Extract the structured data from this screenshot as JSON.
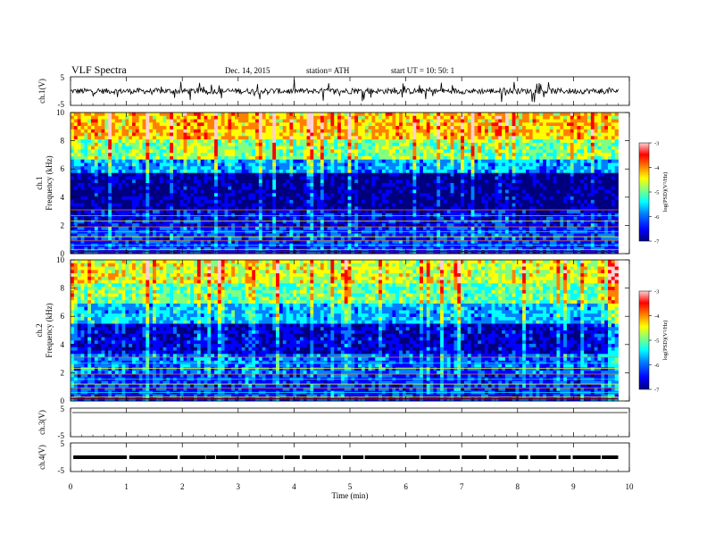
{
  "header": {
    "title": "VLF Spectra",
    "date": "Dec. 14, 2015",
    "station": "station= ATH",
    "start": "start  UT =   10: 50: 1"
  },
  "colors": {
    "waveform": "#000000",
    "frame": "#000000",
    "background": "#ffffff",
    "colormap": [
      "#00007f",
      "#0000ff",
      "#0080ff",
      "#00ffff",
      "#80ff80",
      "#ffff00",
      "#ff8000",
      "#ff0000",
      "#ffd0d0"
    ]
  },
  "chart_data": [
    {
      "id": "ch1-waveform",
      "type": "line",
      "ylabel": "ch.1(V)",
      "ylim": [
        -5,
        5
      ],
      "yticks": [
        "5",
        "-5"
      ],
      "xlim": [
        0,
        10
      ],
      "series": [
        {
          "description_level_V": 0,
          "noise_amplitude_V": 1.0,
          "spike_amplitude_V": 3.5
        }
      ]
    },
    {
      "id": "ch1-spectrogram",
      "type": "heatmap",
      "ylabel_top": "ch.1",
      "ylabel": "Frequency (kHz)",
      "ylim_kHz": [
        0,
        10
      ],
      "yticks": [
        "0",
        "2",
        "4",
        "6",
        "8",
        "10"
      ],
      "xlim_min": [
        0,
        10
      ],
      "data_extent_min": 9.8,
      "colorbar": {
        "label": "log(PSD)(V²/Hz)",
        "range": [
          -7,
          -3
        ],
        "ticks": [
          "-3",
          "-4",
          "-5",
          "-6",
          "-7"
        ]
      },
      "bands_kHz": [
        {
          "from": 0.0,
          "to": 2.0,
          "level": -6.2
        },
        {
          "from": 2.0,
          "to": 3.2,
          "level": -6.4
        },
        {
          "from": 3.2,
          "to": 5.6,
          "level": -6.8
        },
        {
          "from": 5.6,
          "to": 6.6,
          "level": -5.8
        },
        {
          "from": 6.6,
          "to": 8.0,
          "level": -5.0
        },
        {
          "from": 8.0,
          "to": 10.0,
          "level": -4.4
        }
      ]
    },
    {
      "id": "ch2-spectrogram",
      "type": "heatmap",
      "ylabel_top": "ch.2",
      "ylabel": "Frequency (kHz)",
      "ylim_kHz": [
        0,
        10
      ],
      "yticks": [
        "0",
        "2",
        "4",
        "6",
        "8",
        "10"
      ],
      "xlim_min": [
        0,
        10
      ],
      "data_extent_min": 9.8,
      "colorbar": {
        "label": "log(PSD)(V²/Hz)",
        "range": [
          -7,
          -3
        ],
        "ticks": [
          "-3",
          "-4",
          "-5",
          "-6",
          "-7"
        ]
      },
      "bands_kHz": [
        {
          "from": 0.0,
          "to": 2.0,
          "level": -6.2
        },
        {
          "from": 2.0,
          "to": 3.4,
          "level": -6.0
        },
        {
          "from": 3.4,
          "to": 5.4,
          "level": -6.5
        },
        {
          "from": 5.4,
          "to": 7.0,
          "level": -5.7
        },
        {
          "from": 7.0,
          "to": 8.4,
          "level": -5.1
        },
        {
          "from": 8.4,
          "to": 10.0,
          "level": -4.7
        }
      ]
    },
    {
      "id": "ch3-waveform",
      "type": "line",
      "ylabel": "ch.3(V)",
      "ylim": [
        -5,
        5
      ],
      "yticks": [
        "5",
        "-5"
      ],
      "xlim": [
        0,
        10
      ],
      "series": [
        {
          "description_level_V": 0,
          "noise_amplitude_V": 0.0
        }
      ]
    },
    {
      "id": "ch4-waveform",
      "type": "line",
      "ylabel": "ch.4(V)",
      "ylim": [
        -5,
        5
      ],
      "yticks": [
        "5",
        "-5"
      ],
      "xlim": [
        0,
        10
      ],
      "series": [
        {
          "description_level_V": 0,
          "noise_amplitude_V": 0.6,
          "gated": true
        }
      ]
    }
  ],
  "xaxis": {
    "label": "Time (min)",
    "ticks": [
      "0",
      "1",
      "2",
      "3",
      "4",
      "5",
      "6",
      "7",
      "8",
      "9",
      "10"
    ]
  }
}
